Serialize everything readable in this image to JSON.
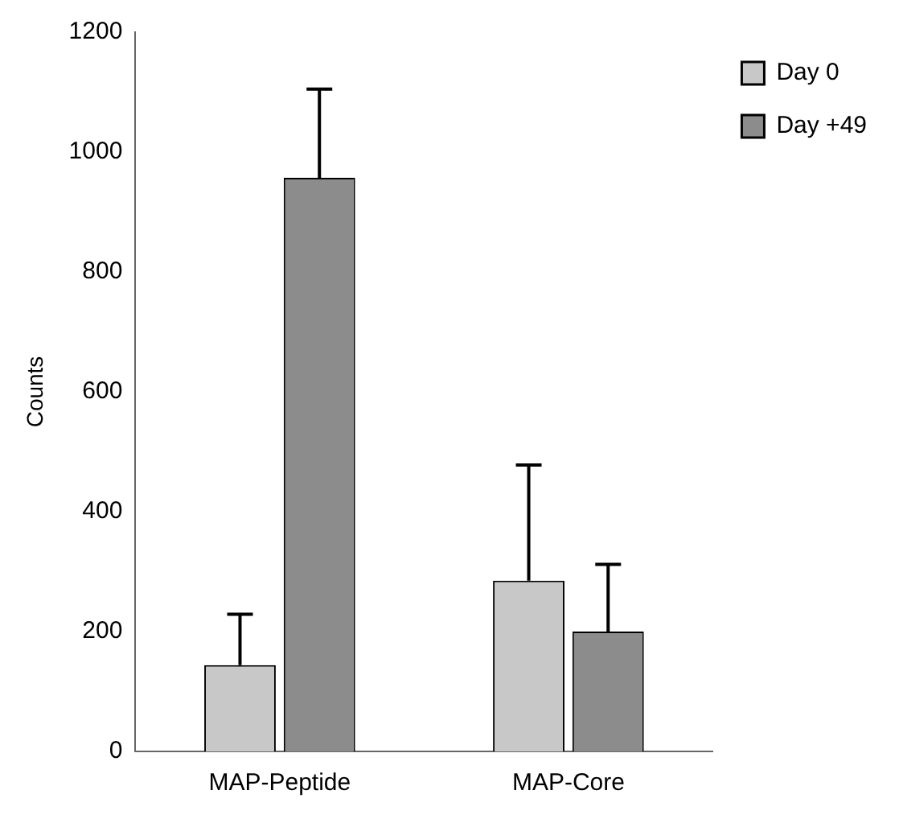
{
  "chart_data": {
    "type": "bar",
    "ylabel": "Counts",
    "categories": [
      "MAP-Peptide",
      "MAP-Core"
    ],
    "series": [
      {
        "name": "Day 0",
        "color": "#c8c8c8",
        "values": [
          144,
          285
        ],
        "errors": [
          [
            144,
            229
          ],
          [
            285,
            478
          ]
        ]
      },
      {
        "name": "Day +49",
        "color": "#8c8c8c",
        "values": [
          957,
          200
        ],
        "errors": [
          [
            957,
            1105
          ],
          [
            200,
            312
          ]
        ]
      }
    ],
    "ylim": [
      0,
      1200
    ],
    "yticks": [
      0,
      200,
      400,
      600,
      800,
      1000,
      1200
    ],
    "grid": false,
    "legend": "top right"
  }
}
